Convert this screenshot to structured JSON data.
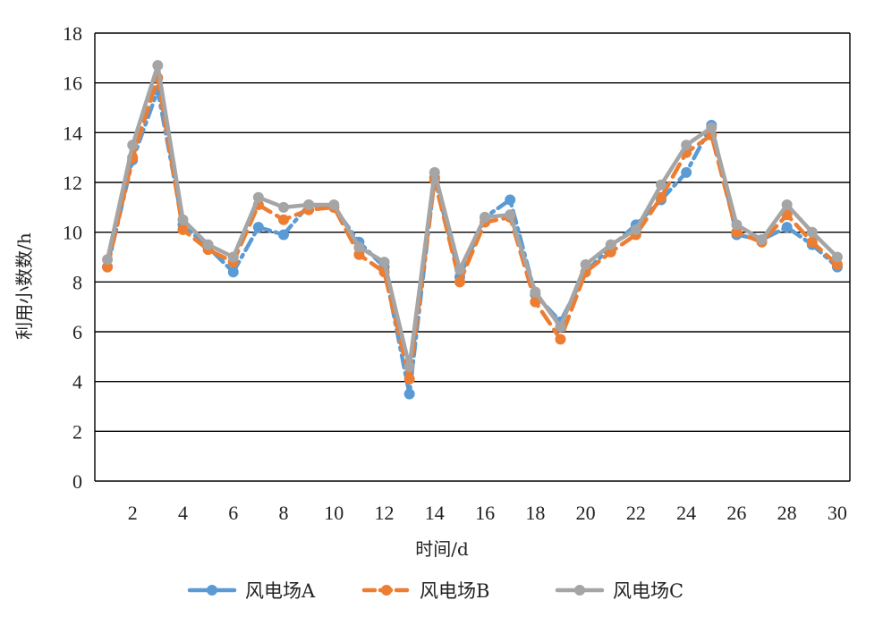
{
  "chart_data": {
    "type": "line",
    "title": "",
    "xlabel": "时间/d",
    "ylabel": "利用小数数/h",
    "xlim": [
      1,
      30
    ],
    "ylim": [
      0,
      18
    ],
    "yticks": [
      0,
      2,
      4,
      6,
      8,
      10,
      12,
      14,
      16,
      18
    ],
    "xticks": [
      2,
      4,
      6,
      8,
      10,
      12,
      14,
      16,
      18,
      20,
      22,
      24,
      26,
      28,
      30
    ],
    "grid": "horizontal",
    "legend_position": "bottom",
    "x": [
      1,
      2,
      3,
      4,
      5,
      6,
      7,
      8,
      9,
      10,
      11,
      12,
      13,
      14,
      15,
      16,
      17,
      18,
      19,
      20,
      21,
      22,
      23,
      24,
      25,
      26,
      27,
      28,
      29,
      30
    ],
    "series": [
      {
        "name": "风电场A",
        "color": "#5b9bd5",
        "line_style": "dash-dot",
        "values": [
          8.6,
          12.9,
          15.7,
          10.3,
          9.4,
          8.4,
          10.2,
          9.9,
          11.1,
          11.0,
          9.6,
          8.6,
          3.5,
          12.2,
          8.2,
          10.6,
          11.3,
          7.5,
          6.4,
          8.4,
          9.4,
          10.3,
          11.3,
          12.4,
          14.3,
          9.9,
          9.7,
          10.2,
          9.5,
          8.6
        ]
      },
      {
        "name": "风电场B",
        "color": "#ed7d31",
        "line_style": "dashed",
        "values": [
          8.6,
          13.0,
          16.2,
          10.1,
          9.3,
          8.8,
          11.1,
          10.5,
          10.9,
          11.0,
          9.1,
          8.4,
          4.1,
          12.1,
          8.0,
          10.4,
          10.6,
          7.2,
          5.7,
          8.4,
          9.2,
          9.9,
          11.4,
          13.2,
          13.9,
          10.0,
          9.6,
          10.7,
          9.6,
          8.7
        ]
      },
      {
        "name": "风电场C",
        "color": "#a5a5a5",
        "line_style": "solid",
        "values": [
          8.9,
          13.5,
          16.7,
          10.5,
          9.5,
          9.0,
          11.4,
          11.0,
          11.1,
          11.1,
          9.4,
          8.8,
          4.6,
          12.4,
          8.5,
          10.6,
          10.7,
          7.6,
          6.2,
          8.7,
          9.5,
          10.1,
          11.9,
          13.5,
          14.2,
          10.3,
          9.7,
          11.1,
          10.0,
          9.0
        ]
      }
    ]
  }
}
